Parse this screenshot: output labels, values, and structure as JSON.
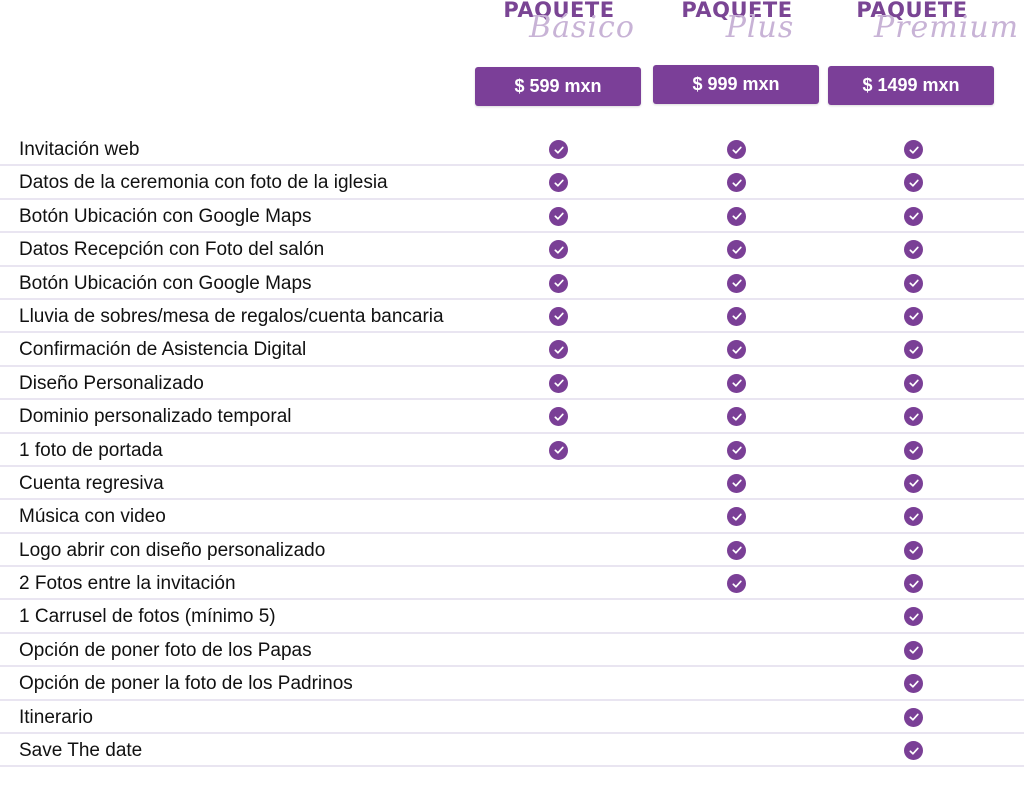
{
  "packages": [
    {
      "word": "PAQUETE",
      "script": "Básico",
      "price": "$ 599 mxn"
    },
    {
      "word": "PAQUETE",
      "script": "Plus",
      "price": "$ 999 mxn"
    },
    {
      "word": "PAQUETE",
      "script": "Premium",
      "price": "$ 1499 mxn"
    }
  ],
  "accent_color": "#7b3f98",
  "check_icon": "check-circle-icon",
  "features": [
    {
      "label": "Invitación web",
      "basico": true,
      "plus": true,
      "premium": true
    },
    {
      "label": "Datos de la ceremonia con foto de la iglesia",
      "basico": true,
      "plus": true,
      "premium": true
    },
    {
      "label": "Botón Ubicación con Google Maps",
      "basico": true,
      "plus": true,
      "premium": true
    },
    {
      "label": "Datos Recepción con Foto del salón",
      "basico": true,
      "plus": true,
      "premium": true
    },
    {
      "label": "Botón Ubicación con Google Maps",
      "basico": true,
      "plus": true,
      "premium": true
    },
    {
      "label": "Lluvia de sobres/mesa de regalos/cuenta bancaria",
      "basico": true,
      "plus": true,
      "premium": true
    },
    {
      "label": "Confirmación de Asistencia Digital",
      "basico": true,
      "plus": true,
      "premium": true
    },
    {
      "label": "Diseño Personalizado",
      "basico": true,
      "plus": true,
      "premium": true
    },
    {
      "label": "Dominio personalizado temporal",
      "basico": true,
      "plus": true,
      "premium": true
    },
    {
      "label": "1 foto de portada",
      "basico": true,
      "plus": true,
      "premium": true
    },
    {
      "label": "Cuenta regresiva",
      "basico": false,
      "plus": true,
      "premium": true
    },
    {
      "label": "Música con video",
      "basico": false,
      "plus": true,
      "premium": true
    },
    {
      "label": "Logo abrir con diseño personalizado",
      "basico": false,
      "plus": true,
      "premium": true
    },
    {
      "label": "2 Fotos entre la invitación",
      "basico": false,
      "plus": true,
      "premium": true
    },
    {
      "label": "1 Carrusel de fotos (mínimo 5)",
      "basico": false,
      "plus": false,
      "premium": true
    },
    {
      "label": "Opción de poner foto de los Papas",
      "basico": false,
      "plus": false,
      "premium": true
    },
    {
      "label": "Opción de poner la foto de los Padrinos",
      "basico": false,
      "plus": false,
      "premium": true
    },
    {
      "label": "Itinerario",
      "basico": false,
      "plus": false,
      "premium": true
    },
    {
      "label": "Save The date",
      "basico": false,
      "plus": false,
      "premium": true
    }
  ]
}
